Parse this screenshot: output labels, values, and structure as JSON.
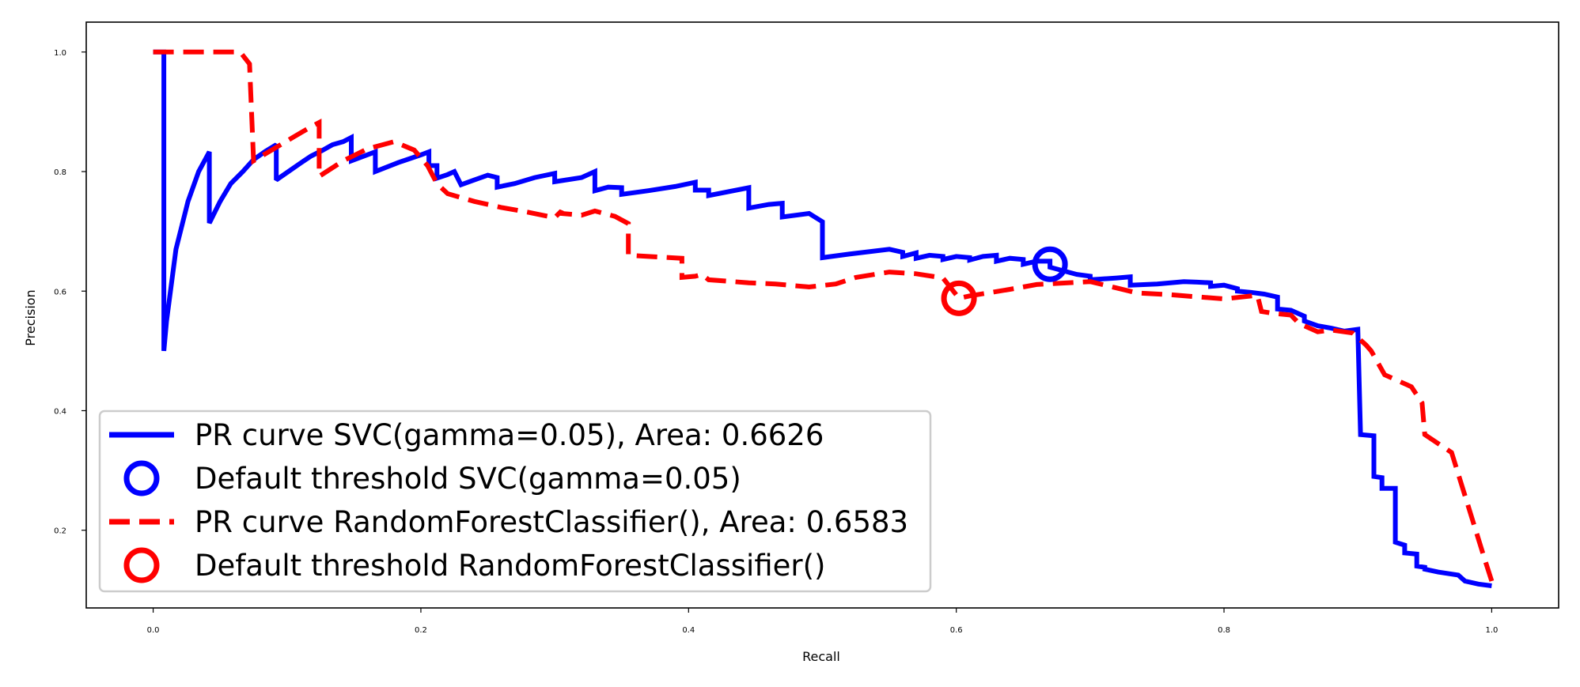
{
  "chart_data": {
    "type": "line",
    "title": "",
    "xlabel": "Recall",
    "ylabel": "Precision",
    "xlim": [
      -0.05,
      1.05
    ],
    "ylim": [
      0.07,
      1.05
    ],
    "xticks": [
      0.0,
      0.2,
      0.4,
      0.6,
      0.8,
      1.0
    ],
    "xtick_labels": [
      "0.0",
      "0.2",
      "0.4",
      "0.6",
      "0.8",
      "1.0"
    ],
    "yticks": [
      0.2,
      0.4,
      0.6,
      0.8,
      1.0
    ],
    "ytick_labels": [
      "0.2",
      "0.4",
      "0.6",
      "0.8",
      "1.0"
    ],
    "grid": false,
    "legend_position": "lower-left",
    "series": [
      {
        "name": "PR curve SVC(gamma=0.05), Area: 0.6626",
        "color": "#0000ff",
        "style": "solid",
        "x": [
          0.0,
          0.008,
          0.008,
          0.01,
          0.017,
          0.026,
          0.034,
          0.042,
          0.042,
          0.05,
          0.058,
          0.067,
          0.075,
          0.084,
          0.092,
          0.092,
          0.101,
          0.11,
          0.118,
          0.126,
          0.134,
          0.142,
          0.148,
          0.148,
          0.166,
          0.166,
          0.183,
          0.2,
          0.206,
          0.206,
          0.212,
          0.212,
          0.22,
          0.225,
          0.23,
          0.23,
          0.24,
          0.25,
          0.257,
          0.257,
          0.27,
          0.285,
          0.3,
          0.3,
          0.32,
          0.33,
          0.33,
          0.34,
          0.35,
          0.35,
          0.37,
          0.39,
          0.405,
          0.405,
          0.415,
          0.415,
          0.445,
          0.445,
          0.46,
          0.47,
          0.47,
          0.49,
          0.5,
          0.5,
          0.52,
          0.55,
          0.56,
          0.56,
          0.57,
          0.57,
          0.58,
          0.59,
          0.59,
          0.6,
          0.61,
          0.61,
          0.62,
          0.63,
          0.63,
          0.64,
          0.65,
          0.65,
          0.66,
          0.67,
          0.67,
          0.69,
          0.7,
          0.7,
          0.72,
          0.73,
          0.73,
          0.75,
          0.77,
          0.78,
          0.79,
          0.79,
          0.8,
          0.81,
          0.81,
          0.82,
          0.83,
          0.84,
          0.84,
          0.85,
          0.86,
          0.86,
          0.87,
          0.88,
          0.89,
          0.9,
          0.902,
          0.912,
          0.912,
          0.918,
          0.918,
          0.928,
          0.928,
          0.935,
          0.935,
          0.944,
          0.944,
          0.95,
          0.95,
          0.96,
          0.975,
          0.98,
          0.99,
          1.0
        ],
        "y": [
          1.0,
          1.0,
          0.5,
          0.55,
          0.67,
          0.75,
          0.8,
          0.833,
          0.714,
          0.75,
          0.78,
          0.8,
          0.82,
          0.834,
          0.845,
          0.786,
          0.8,
          0.814,
          0.826,
          0.835,
          0.845,
          0.85,
          0.857,
          0.818,
          0.833,
          0.8,
          0.815,
          0.828,
          0.833,
          0.81,
          0.81,
          0.789,
          0.795,
          0.8,
          0.778,
          0.778,
          0.786,
          0.794,
          0.79,
          0.774,
          0.78,
          0.79,
          0.797,
          0.783,
          0.79,
          0.8,
          0.768,
          0.774,
          0.773,
          0.762,
          0.768,
          0.775,
          0.782,
          0.769,
          0.769,
          0.76,
          0.773,
          0.739,
          0.745,
          0.747,
          0.724,
          0.73,
          0.716,
          0.656,
          0.662,
          0.67,
          0.665,
          0.658,
          0.664,
          0.655,
          0.66,
          0.658,
          0.653,
          0.658,
          0.656,
          0.652,
          0.658,
          0.66,
          0.65,
          0.655,
          0.653,
          0.645,
          0.65,
          0.65,
          0.64,
          0.628,
          0.625,
          0.619,
          0.622,
          0.624,
          0.61,
          0.612,
          0.616,
          0.615,
          0.614,
          0.608,
          0.61,
          0.604,
          0.6,
          0.598,
          0.595,
          0.59,
          0.57,
          0.568,
          0.558,
          0.55,
          0.542,
          0.538,
          0.533,
          0.536,
          0.36,
          0.358,
          0.29,
          0.288,
          0.27,
          0.27,
          0.18,
          0.175,
          0.162,
          0.16,
          0.14,
          0.138,
          0.135,
          0.13,
          0.125,
          0.115,
          0.11,
          0.107
        ]
      },
      {
        "name": "PR curve RandomForestClassifier(), Area: 0.6583",
        "color": "#ff0000",
        "style": "dashed",
        "x": [
          0.0,
          0.065,
          0.072,
          0.075,
          0.09,
          0.105,
          0.118,
          0.124,
          0.124,
          0.142,
          0.16,
          0.18,
          0.195,
          0.205,
          0.212,
          0.22,
          0.24,
          0.26,
          0.28,
          0.3,
          0.305,
          0.305,
          0.32,
          0.33,
          0.345,
          0.355,
          0.355,
          0.37,
          0.395,
          0.395,
          0.405,
          0.41,
          0.415,
          0.445,
          0.465,
          0.49,
          0.51,
          0.525,
          0.55,
          0.57,
          0.59,
          0.602,
          0.61,
          0.64,
          0.66,
          0.7,
          0.735,
          0.76,
          0.8,
          0.825,
          0.828,
          0.836,
          0.85,
          0.856,
          0.87,
          0.88,
          0.896,
          0.906,
          0.91,
          0.92,
          0.94,
          0.948,
          0.95,
          0.97,
          0.995,
          1.0
        ],
        "y": [
          1.0,
          1.0,
          0.98,
          0.818,
          0.838,
          0.858,
          0.875,
          0.882,
          0.792,
          0.818,
          0.838,
          0.85,
          0.836,
          0.81,
          0.78,
          0.763,
          0.75,
          0.74,
          0.732,
          0.723,
          0.734,
          0.73,
          0.727,
          0.734,
          0.725,
          0.713,
          0.66,
          0.658,
          0.655,
          0.623,
          0.625,
          0.628,
          0.619,
          0.614,
          0.612,
          0.607,
          0.612,
          0.623,
          0.632,
          0.629,
          0.622,
          0.588,
          0.592,
          0.603,
          0.611,
          0.616,
          0.597,
          0.594,
          0.587,
          0.593,
          0.566,
          0.563,
          0.56,
          0.546,
          0.532,
          0.535,
          0.53,
          0.51,
          0.5,
          0.46,
          0.44,
          0.413,
          0.36,
          0.33,
          0.15,
          0.115
        ]
      }
    ],
    "markers": [
      {
        "name": "Default threshold SVC(gamma=0.05)",
        "color": "#0000ff",
        "x": 0.67,
        "y": 0.645
      },
      {
        "name": "Default threshold RandomForestClassifier()",
        "color": "#ff0000",
        "x": 0.602,
        "y": 0.588
      }
    ]
  }
}
